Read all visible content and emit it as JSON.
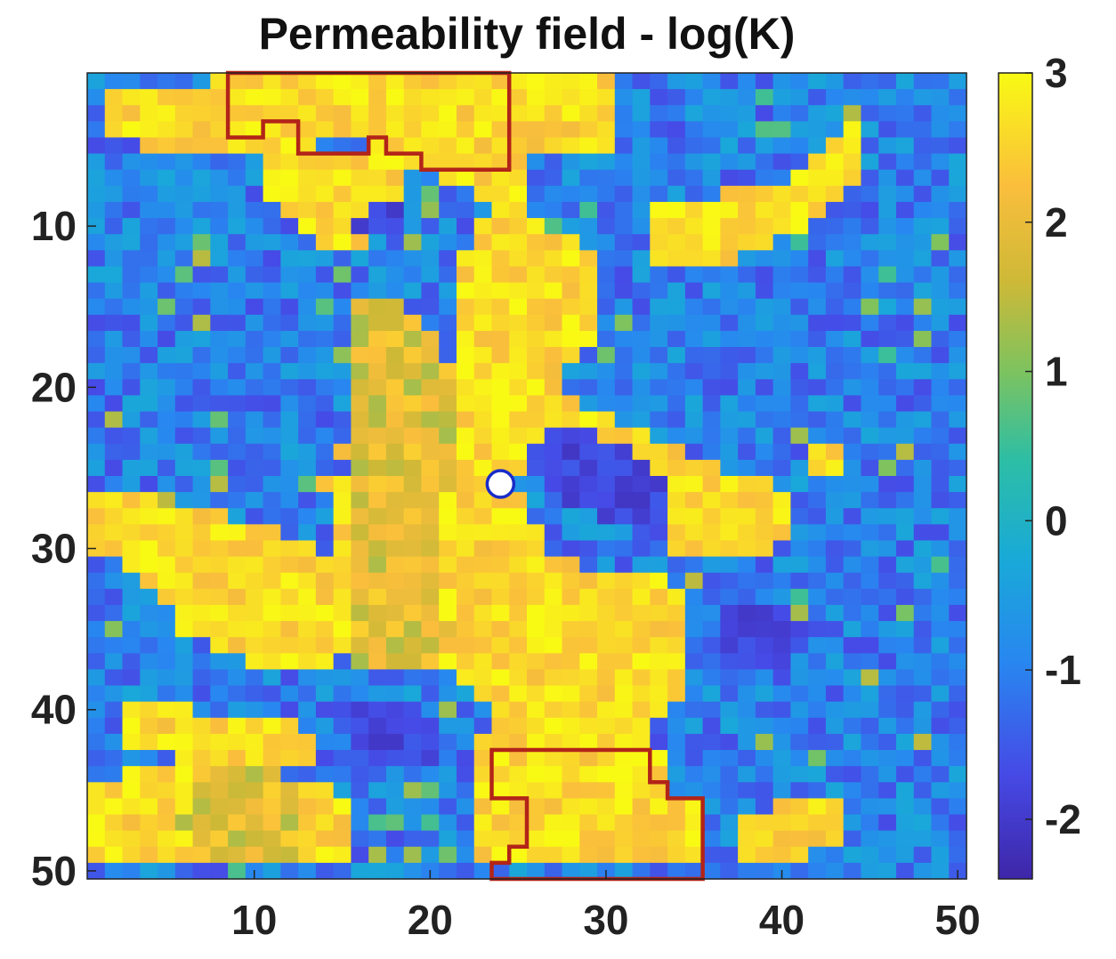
{
  "chart_data": {
    "type": "heatmap",
    "title": "Permeability field - log(K)",
    "xlabel": "",
    "ylabel": "",
    "grid_size": [
      50,
      50
    ],
    "x_range": [
      0.5,
      50.5
    ],
    "y_range": [
      0.5,
      50.5
    ],
    "y_direction": "reversed",
    "x_ticks": [
      10,
      20,
      30,
      40,
      50
    ],
    "y_ticks": [
      10,
      20,
      30,
      40,
      50
    ],
    "colorbar": {
      "range": [
        -2.4,
        3.0
      ],
      "ticks": [
        3,
        2,
        1,
        0,
        -1,
        -2
      ],
      "colormap": "parula",
      "placement": "right"
    },
    "regions": [
      {
        "name": "background",
        "level": -1.0
      },
      {
        "name": "high-permeability",
        "level": 2.7
      },
      {
        "name": "moderate",
        "level": 1.9
      },
      {
        "name": "low-permeability",
        "level": -1.8
      }
    ],
    "marker": {
      "shape": "circle",
      "x": 24,
      "y": 26,
      "fill": "#ffffff",
      "stroke": "#1a2cc8"
    },
    "outlined_zones": [
      {
        "edge_color": "#b22418",
        "vertices": [
          [
            8.5,
            0.5
          ],
          [
            24.5,
            0.5
          ],
          [
            24.5,
            6.5
          ],
          [
            19.5,
            6.5
          ],
          [
            19.5,
            5.5
          ],
          [
            17.5,
            5.5
          ],
          [
            17.5,
            4.5
          ],
          [
            16.5,
            4.5
          ],
          [
            16.5,
            5.5
          ],
          [
            12.5,
            5.5
          ],
          [
            12.5,
            3.5
          ],
          [
            10.5,
            3.5
          ],
          [
            10.5,
            4.5
          ],
          [
            8.5,
            4.5
          ]
        ]
      },
      {
        "edge_color": "#b22418",
        "vertices": [
          [
            23.5,
            42.5
          ],
          [
            32.5,
            42.5
          ],
          [
            32.5,
            44.5
          ],
          [
            33.5,
            44.5
          ],
          [
            33.5,
            45.5
          ],
          [
            35.5,
            45.5
          ],
          [
            35.5,
            50.5
          ],
          [
            23.5,
            50.5
          ],
          [
            23.5,
            49.5
          ],
          [
            24.5,
            49.5
          ],
          [
            24.5,
            48.5
          ],
          [
            25.5,
            48.5
          ],
          [
            25.5,
            45.5
          ],
          [
            23.5,
            45.5
          ]
        ]
      }
    ]
  }
}
